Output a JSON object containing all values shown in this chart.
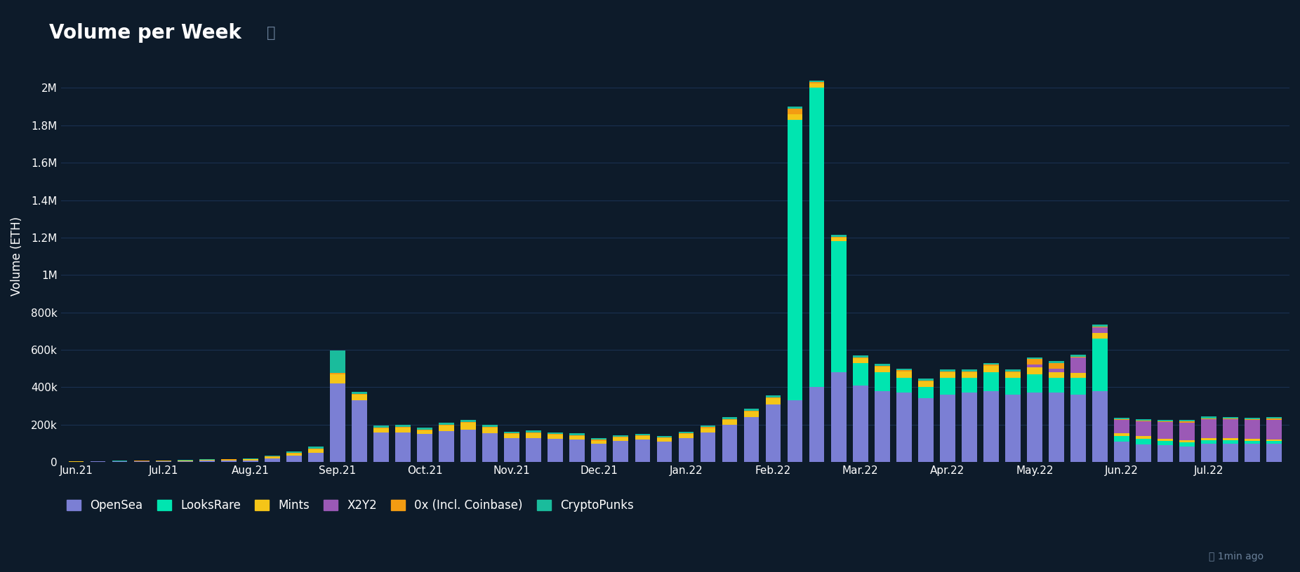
{
  "title": "Volume per Week",
  "ylabel": "Volume (ETH)",
  "background_color": "#0d1b2a",
  "text_color": "#ffffff",
  "grid_color": "#1a3050",
  "axis_color": "#1a3050",
  "n_bars": 56,
  "xtick_positions": [
    0,
    4,
    8,
    12,
    16,
    20,
    24,
    28,
    32,
    36,
    40,
    44,
    48,
    52
  ],
  "xtick_labels": [
    "Jun.21",
    "Jul.21",
    "Aug.21",
    "Sep.21",
    "Oct.21",
    "Nov.21",
    "Dec.21",
    "Jan.22",
    "Feb.22",
    "Mar.22",
    "Apr.22",
    "May.22",
    "Jun.22",
    "Jul.22"
  ],
  "series": {
    "OpenSea": {
      "color": "#7b7fd4",
      "values": [
        2000,
        3000,
        4000,
        5000,
        5000,
        6000,
        7000,
        8000,
        10000,
        20000,
        35000,
        50000,
        420000,
        330000,
        160000,
        160000,
        150000,
        165000,
        175000,
        155000,
        130000,
        130000,
        125000,
        120000,
        100000,
        115000,
        120000,
        110000,
        130000,
        160000,
        200000,
        240000,
        310000,
        330000,
        400000,
        480000,
        410000,
        380000,
        370000,
        340000,
        360000,
        370000,
        380000,
        360000,
        370000,
        370000,
        360000,
        380000,
        110000,
        95000,
        90000,
        85000,
        100000,
        100000,
        100000,
        100000
      ]
    },
    "LooksRare": {
      "color": "#00e5b0",
      "values": [
        0,
        0,
        0,
        0,
        0,
        0,
        0,
        0,
        0,
        0,
        0,
        0,
        0,
        0,
        0,
        0,
        0,
        0,
        0,
        0,
        0,
        0,
        0,
        0,
        0,
        0,
        0,
        0,
        0,
        0,
        0,
        0,
        0,
        1500000,
        1600000,
        700000,
        120000,
        100000,
        80000,
        60000,
        90000,
        80000,
        100000,
        90000,
        100000,
        80000,
        90000,
        280000,
        30000,
        28000,
        22000,
        20000,
        18000,
        16000,
        14000,
        12000
      ]
    },
    "Mints": {
      "color": "#f5c518",
      "values": [
        1000,
        1000,
        1000,
        1000,
        2000,
        3000,
        4000,
        5000,
        5000,
        8000,
        12000,
        18000,
        50000,
        30000,
        20000,
        25000,
        20000,
        30000,
        35000,
        30000,
        20000,
        25000,
        22000,
        20000,
        15000,
        18000,
        20000,
        18000,
        20000,
        22000,
        25000,
        30000,
        30000,
        30000,
        25000,
        20000,
        25000,
        30000,
        35000,
        30000,
        30000,
        30000,
        35000,
        30000,
        35000,
        30000,
        28000,
        30000,
        15000,
        15000,
        12000,
        12000,
        12000,
        12000,
        10000,
        10000
      ]
    },
    "X2Y2": {
      "color": "#9b59b6",
      "values": [
        0,
        0,
        0,
        0,
        0,
        0,
        0,
        0,
        0,
        0,
        0,
        0,
        0,
        0,
        0,
        0,
        0,
        0,
        0,
        0,
        0,
        0,
        0,
        0,
        0,
        0,
        0,
        0,
        0,
        0,
        0,
        0,
        0,
        0,
        0,
        0,
        0,
        0,
        0,
        0,
        0,
        0,
        0,
        0,
        15000,
        20000,
        80000,
        30000,
        70000,
        80000,
        90000,
        95000,
        100000,
        100000,
        100000,
        105000
      ]
    },
    "0x (Incl. Coinbase)": {
      "color": "#f39c12",
      "values": [
        500,
        500,
        500,
        500,
        1000,
        1000,
        1000,
        1000,
        1500,
        2000,
        3000,
        4000,
        5000,
        5000,
        5000,
        5000,
        5000,
        5000,
        5000,
        5000,
        5000,
        5000,
        5000,
        5000,
        4000,
        4000,
        4000,
        4000,
        5000,
        5000,
        5000,
        5000,
        5000,
        30000,
        5000,
        5000,
        5000,
        5000,
        5000,
        5000,
        5000,
        5000,
        5000,
        5000,
        30000,
        30000,
        5000,
        5000,
        5000,
        5000,
        5000,
        5000,
        5000,
        5000,
        5000,
        5000
      ]
    },
    "CryptoPunks": {
      "color": "#1abc9c",
      "values": [
        500,
        500,
        1000,
        1000,
        1000,
        1500,
        2000,
        2500,
        3000,
        5000,
        8000,
        12000,
        120000,
        10000,
        10000,
        10000,
        8000,
        10000,
        12000,
        8000,
        8000,
        8000,
        8000,
        8000,
        8000,
        8000,
        8000,
        8000,
        8000,
        8000,
        10000,
        10000,
        10000,
        10000,
        10000,
        10000,
        10000,
        10000,
        10000,
        10000,
        10000,
        10000,
        10000,
        10000,
        10000,
        10000,
        10000,
        10000,
        8000,
        8000,
        8000,
        8000,
        8000,
        8000,
        8000,
        8000
      ]
    }
  },
  "legend": [
    {
      "label": "OpenSea",
      "color": "#7b7fd4"
    },
    {
      "label": "LooksRare",
      "color": "#00e5b0"
    },
    {
      "label": "Mints",
      "color": "#f5c518"
    },
    {
      "label": "X2Y2",
      "color": "#9b59b6"
    },
    {
      "label": "0x (Incl. Coinbase)",
      "color": "#f39c12"
    },
    {
      "label": "CryptoPunks",
      "color": "#1abc9c"
    }
  ],
  "ylim": [
    0,
    2200000
  ],
  "yticks": [
    0,
    200000,
    400000,
    600000,
    800000,
    1000000,
    1200000,
    1400000,
    1600000,
    1800000,
    2000000
  ],
  "ytick_labels": [
    "0",
    "200k",
    "400k",
    "600k",
    "800k",
    "1M",
    "1.2M",
    "1.4M",
    "1.6M",
    "1.8M",
    "2M"
  ]
}
